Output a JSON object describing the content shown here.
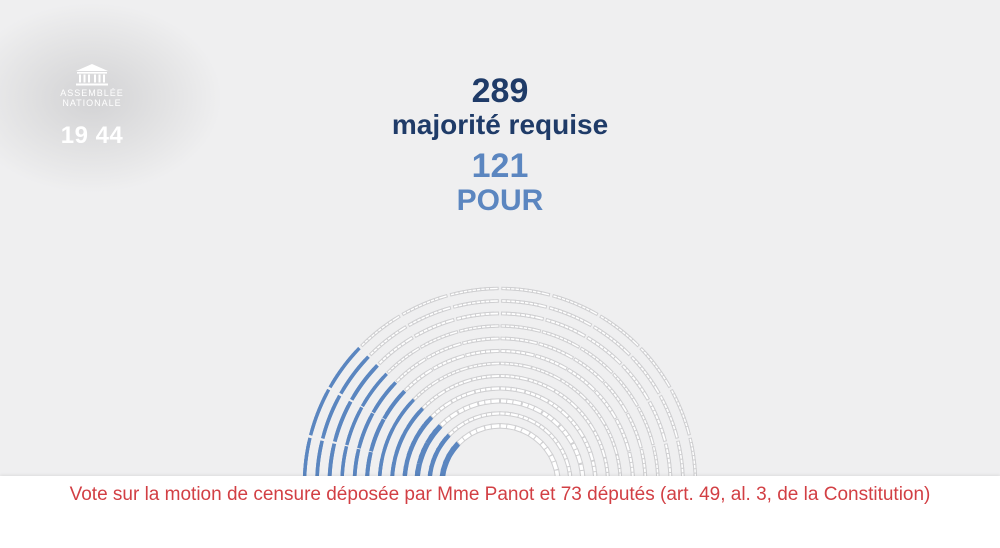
{
  "logo": {
    "line1": "ASSEMBLÉE",
    "line2": "NATIONALE",
    "icon": "palais-bourbon-icon"
  },
  "clock": "19 44",
  "vote": {
    "required_number": "289",
    "required_label": "majorité requise",
    "pour_number": "121",
    "pour_label": "POUR",
    "pour_count": 121
  },
  "caption": "Vote sur la motion de censure déposée par Mme Panot et 73 députés (art. 49, al. 3, de la Constitution)",
  "colors": {
    "pour": "#5b86c0",
    "seat_empty": "#ffffff",
    "seat_outline": "#cfcfd1",
    "required": "#1f3b68",
    "caption": "#d23f44"
  }
}
